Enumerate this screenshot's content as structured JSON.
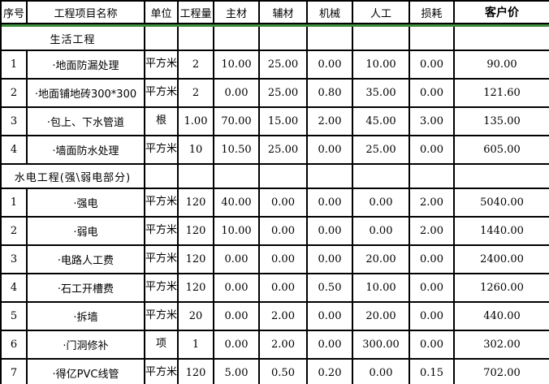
{
  "colors": {
    "header_bg": "#d4d0c8",
    "section_bg": "#ccffff",
    "grid_border": "#000000",
    "header_rule_green": "#3c8c3c",
    "text": "#000000"
  },
  "table": {
    "columns": [
      {
        "key": "index",
        "label": "序号"
      },
      {
        "key": "name",
        "label": "工程项目名称"
      },
      {
        "key": "unit",
        "label": "单位"
      },
      {
        "key": "quantity",
        "label": "工程量"
      },
      {
        "key": "main",
        "label": "主材"
      },
      {
        "key": "aux",
        "label": "辅材"
      },
      {
        "key": "machine",
        "label": "机械"
      },
      {
        "key": "labor",
        "label": "人工"
      },
      {
        "key": "loss",
        "label": "损耗"
      },
      {
        "key": "price",
        "label": "客户价"
      }
    ],
    "sections": [
      {
        "title": "生活工程",
        "rows": [
          {
            "index": "1",
            "name": "·地面防漏处理",
            "unit": "平方米",
            "quantity": "2",
            "main": "10.00",
            "aux": "25.00",
            "machine": "0.00",
            "labor": "10.00",
            "loss": "0.00",
            "price": "90.00"
          },
          {
            "index": "2",
            "name": "·地面铺地砖300*300",
            "unit": "平方米",
            "quantity": "2",
            "main": "0.00",
            "aux": "25.00",
            "machine": "0.80",
            "labor": "35.00",
            "loss": "0.00",
            "price": "121.60"
          },
          {
            "index": "3",
            "name": "·包上、下水管道",
            "unit": "根",
            "quantity": "1.00",
            "main": "70.00",
            "aux": "15.00",
            "machine": "2.00",
            "labor": "45.00",
            "loss": "3.00",
            "price": "135.00"
          },
          {
            "index": "4",
            "name": "·墙面防水处理",
            "unit": "平方米",
            "quantity": "10",
            "main": "10.50",
            "aux": "25.00",
            "machine": "0.00",
            "labor": "25.00",
            "loss": "0.00",
            "price": "605.00"
          }
        ]
      },
      {
        "title": "水电工程(强\\弱电部分)",
        "rows": [
          {
            "index": "1",
            "name": "·强电",
            "unit": "平方米",
            "quantity": "120",
            "main": "40.00",
            "aux": "0.00",
            "machine": "0.00",
            "labor": "0.00",
            "loss": "2.00",
            "price": "5040.00"
          },
          {
            "index": "2",
            "name": "·弱电",
            "unit": "平方米",
            "quantity": "120",
            "main": "10.00",
            "aux": "0.00",
            "machine": "0.00",
            "labor": "0.00",
            "loss": "2.00",
            "price": "1440.00"
          },
          {
            "index": "3",
            "name": "·电路人工费",
            "unit": "平方米",
            "quantity": "120",
            "main": "0.00",
            "aux": "0.00",
            "machine": "0.00",
            "labor": "20.00",
            "loss": "0.00",
            "price": "2400.00"
          },
          {
            "index": "4",
            "name": "·石工开槽费",
            "unit": "平方米",
            "quantity": "120",
            "main": "0.00",
            "aux": "0.00",
            "machine": "0.50",
            "labor": "10.00",
            "loss": "0.00",
            "price": "1260.00"
          },
          {
            "index": "5",
            "name": "·拆墙",
            "unit": "平方米",
            "quantity": "20",
            "main": "0.00",
            "aux": "2.00",
            "machine": "0.00",
            "labor": "20.00",
            "loss": "0.00",
            "price": "440.00"
          },
          {
            "index": "6",
            "name": "·门洞修补",
            "unit": "项",
            "quantity": "1",
            "main": "0.00",
            "aux": "2.00",
            "machine": "0.00",
            "labor": "300.00",
            "loss": "0.00",
            "price": "302.00"
          },
          {
            "index": "7",
            "name": "·得亿PVC线管",
            "unit": "平方米",
            "quantity": "120",
            "main": "5.00",
            "aux": "0.50",
            "machine": "0.20",
            "labor": "0.00",
            "loss": "0.15",
            "price": "702.00"
          }
        ]
      }
    ]
  }
}
